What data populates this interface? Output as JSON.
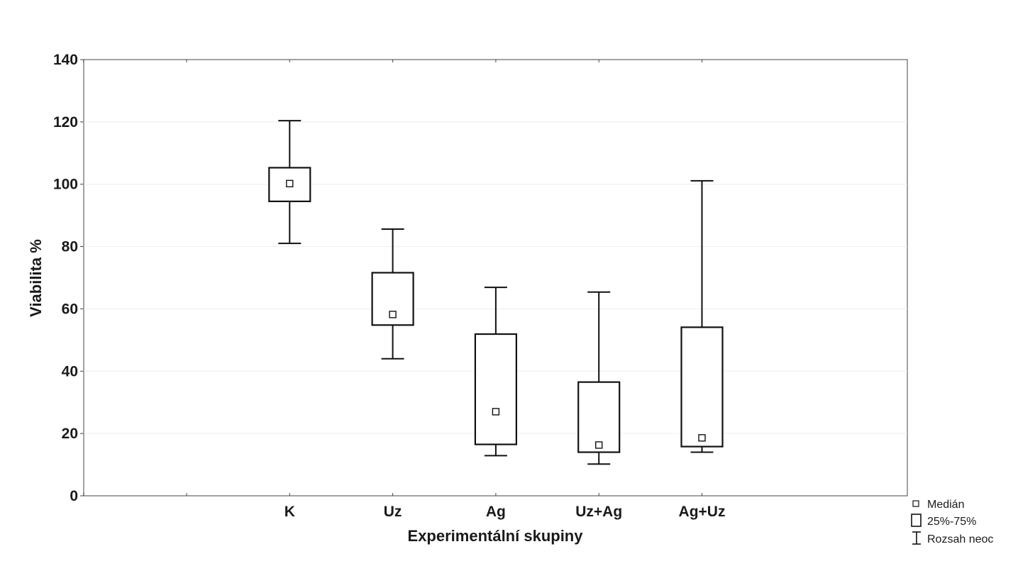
{
  "chart_data": {
    "type": "boxplot",
    "xlabel": "Experimentální skupiny",
    "ylabel": "Viabilita %",
    "ylim": [
      0,
      140
    ],
    "yticks": [
      0,
      20,
      40,
      60,
      80,
      100,
      120,
      140
    ],
    "grid": true,
    "legend_position": "bottom-right",
    "categories": [
      "K",
      "Uz",
      "Ag",
      "Uz+Ag",
      "Ag+Uz"
    ],
    "groups": [
      {
        "category": "K",
        "median": 100.2,
        "q1": 94.5,
        "q3": 105.3,
        "min": 81,
        "max": 120.4
      },
      {
        "category": "Uz",
        "median": 58.2,
        "q1": 54.8,
        "q3": 71.6,
        "min": 44,
        "max": 85.6
      },
      {
        "category": "Ag",
        "median": 27,
        "q1": 16.5,
        "q3": 51.9,
        "min": 12.9,
        "max": 66.9
      },
      {
        "category": "Uz+Ag",
        "median": 16.3,
        "q1": 14,
        "q3": 36.5,
        "min": 10.2,
        "max": 65.4
      },
      {
        "category": "Ag+Uz",
        "median": 18.6,
        "q1": 15.8,
        "q3": 54.1,
        "min": 14,
        "max": 101.1
      }
    ],
    "legend": {
      "median": "Medián",
      "box": "25%-75%",
      "whisker": "Rozsah neoc"
    }
  }
}
